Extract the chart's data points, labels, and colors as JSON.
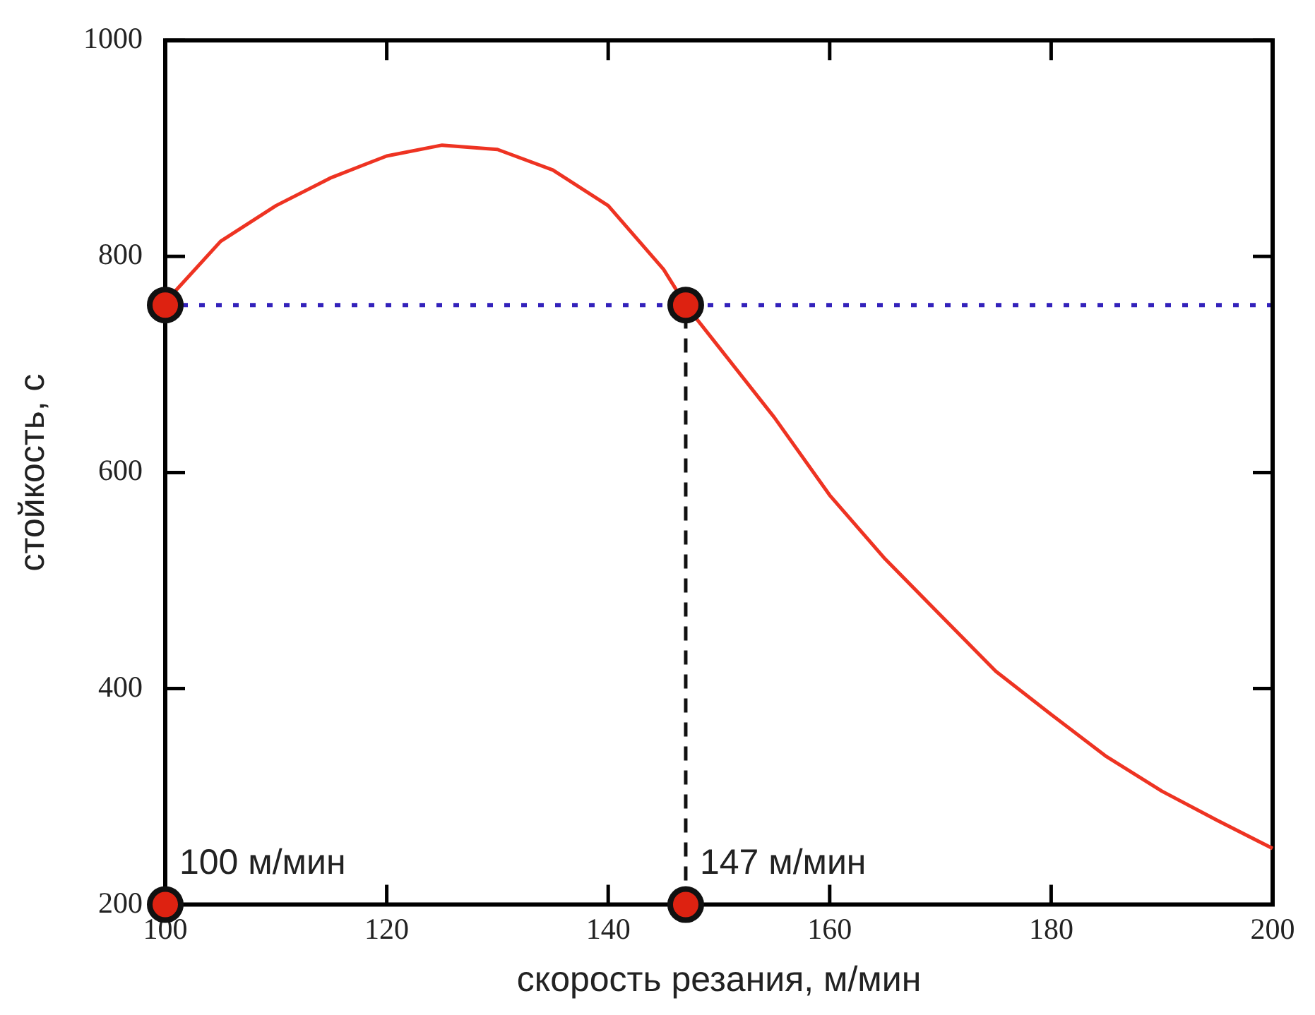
{
  "chart_data": {
    "type": "line",
    "xlabel": "скорость резания, м/мин",
    "ylabel": "стойкость, с",
    "xlim": [
      100,
      200
    ],
    "xticks": [
      100,
      120,
      140,
      160,
      180,
      200
    ],
    "ylim": [
      200,
      1000
    ],
    "yticks": [
      200,
      400,
      600,
      800,
      1000
    ],
    "grid": false,
    "legend": false,
    "series": [
      {
        "color": "#ee3322",
        "marker": "none",
        "line_style": "solid",
        "x": [
          100,
          101,
          105,
          110,
          115,
          120,
          125,
          130,
          135,
          140,
          145,
          147,
          150,
          155,
          160,
          165,
          170,
          175,
          180,
          185,
          190,
          195,
          200
        ],
        "values": [
          755,
          769,
          814,
          847,
          873,
          893,
          903,
          899,
          880,
          847,
          788,
          755,
          716,
          651,
          579,
          520,
          468,
          416,
          376,
          337,
          305,
          278,
          252
        ]
      },
      {
        "color": "#111111",
        "marker": "none",
        "line_style": "dashed",
        "x": [
          147,
          147
        ],
        "values": [
          200,
          755
        ]
      },
      {
        "type": "scatter",
        "color": "#dd2211",
        "marker": "circle",
        "x": [
          100,
          147,
          100,
          147
        ],
        "values": [
          755,
          755,
          200,
          200
        ]
      }
    ],
    "ref_lines": [
      {
        "axis": "y",
        "value": 755,
        "color": "#3322bb",
        "line_style": "dotted"
      }
    ],
    "annotations": [
      {
        "text": "100 м/мин",
        "x": 100,
        "y": 200
      },
      {
        "text": "147 м/мин",
        "x": 147,
        "y": 200
      }
    ]
  }
}
